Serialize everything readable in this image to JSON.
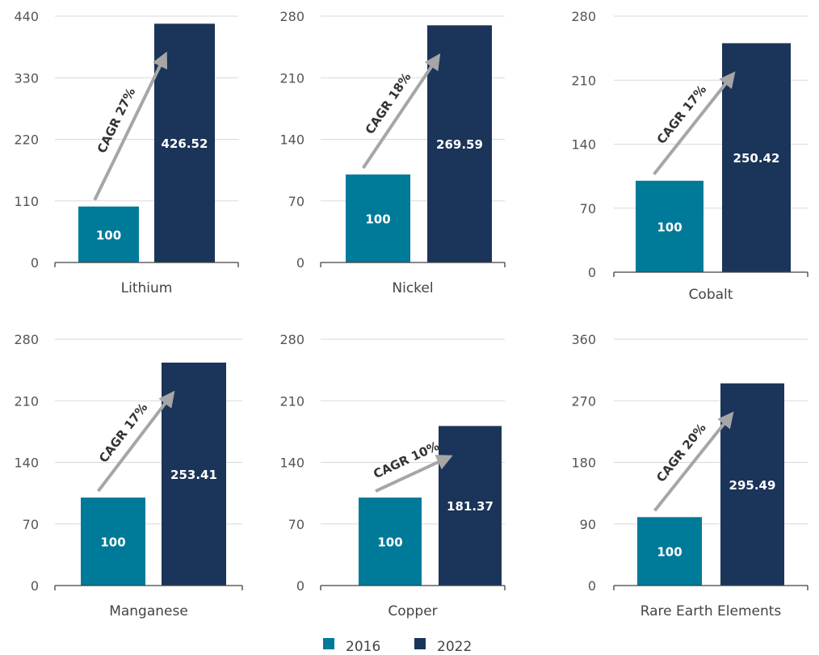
{
  "colors": {
    "series_2016": "#007a99",
    "series_2022": "#1b3459",
    "arrow": "#a6a6a6",
    "gridline": "#d9d9d9",
    "axis": "#404040"
  },
  "legend": [
    {
      "label": "2016",
      "color": "#007a99"
    },
    {
      "label": "2022",
      "color": "#1b3459"
    }
  ],
  "chart_data": [
    {
      "type": "bar",
      "category": "Lithium",
      "series_names": [
        "2016",
        "2022"
      ],
      "values": [
        100,
        426.52
      ],
      "value_labels": [
        "100",
        "426.52"
      ],
      "cagr_label": "CAGR 27%",
      "ylim": [
        0,
        440
      ],
      "yticks": [
        0,
        110,
        220,
        330,
        440
      ],
      "grid": true
    },
    {
      "type": "bar",
      "category": "Nickel",
      "series_names": [
        "2016",
        "2022"
      ],
      "values": [
        100,
        269.59
      ],
      "value_labels": [
        "100",
        "269.59"
      ],
      "cagr_label": "CAGR 18%",
      "ylim": [
        0,
        280
      ],
      "yticks": [
        0,
        70,
        140,
        210,
        280
      ],
      "grid": true
    },
    {
      "type": "bar",
      "category": "Cobalt",
      "series_names": [
        "2016",
        "2022"
      ],
      "values": [
        100,
        250.42
      ],
      "value_labels": [
        "100",
        "250.42"
      ],
      "cagr_label": "CAGR 17%",
      "ylim": [
        0,
        280
      ],
      "yticks": [
        0,
        70,
        140,
        210,
        280
      ],
      "grid": true
    },
    {
      "type": "bar",
      "category": "Manganese",
      "series_names": [
        "2016",
        "2022"
      ],
      "values": [
        100,
        253.41
      ],
      "value_labels": [
        "100",
        "253.41"
      ],
      "cagr_label": "CAGR 17%",
      "ylim": [
        0,
        280
      ],
      "yticks": [
        0,
        70,
        140,
        210,
        280
      ],
      "grid": true
    },
    {
      "type": "bar",
      "category": "Copper",
      "series_names": [
        "2016",
        "2022"
      ],
      "values": [
        100,
        181.37
      ],
      "value_labels": [
        "100",
        "181.37"
      ],
      "cagr_label": "CAGR 10%",
      "ylim": [
        0,
        280
      ],
      "yticks": [
        0,
        70,
        140,
        210,
        280
      ],
      "grid": true
    },
    {
      "type": "bar",
      "category": "Rare Earth Elements",
      "series_names": [
        "2016",
        "2022"
      ],
      "values": [
        100,
        295.49
      ],
      "value_labels": [
        "100",
        "295.49"
      ],
      "cagr_label": "CAGR 20%",
      "ylim": [
        0,
        360
      ],
      "yticks": [
        0,
        90,
        180,
        270,
        360
      ],
      "grid": true
    }
  ]
}
